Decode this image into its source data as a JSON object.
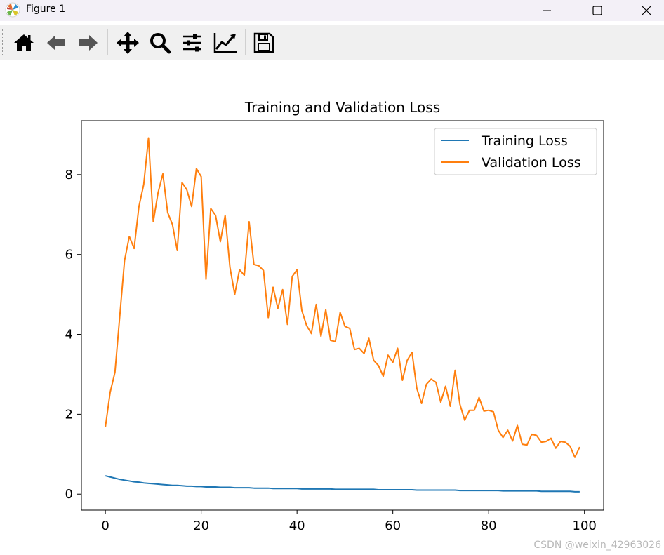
{
  "window": {
    "title": "Figure 1",
    "minimize_glyph": "—",
    "maximize_glyph": "☐",
    "close_glyph": "✕"
  },
  "toolbar": {
    "buttons": [
      "home-icon",
      "back-arrow-icon",
      "forward-arrow-icon",
      "pan-icon",
      "zoom-icon",
      "configure-subplots-icon",
      "edit-axis-icon",
      "save-icon"
    ]
  },
  "watermark": "CSDN @weixin_42963026",
  "colors": {
    "training": "#1f77b4",
    "validation": "#ff7f0e"
  },
  "chart_data": {
    "type": "line",
    "title": "Training and Validation Loss",
    "xlabel": "",
    "ylabel": "",
    "xlim": [
      -5,
      104
    ],
    "ylim": [
      -0.4,
      9.35
    ],
    "xticks": [
      0,
      20,
      40,
      60,
      80,
      100
    ],
    "yticks": [
      0,
      2,
      4,
      6,
      8
    ],
    "grid": false,
    "legend": "top-right",
    "x": [
      0,
      1,
      2,
      3,
      4,
      5,
      6,
      7,
      8,
      9,
      10,
      11,
      12,
      13,
      14,
      15,
      16,
      17,
      18,
      19,
      20,
      21,
      22,
      23,
      24,
      25,
      26,
      27,
      28,
      29,
      30,
      31,
      32,
      33,
      34,
      35,
      36,
      37,
      38,
      39,
      40,
      41,
      42,
      43,
      44,
      45,
      46,
      47,
      48,
      49,
      50,
      51,
      52,
      53,
      54,
      55,
      56,
      57,
      58,
      59,
      60,
      61,
      62,
      63,
      64,
      65,
      66,
      67,
      68,
      69,
      70,
      71,
      72,
      73,
      74,
      75,
      76,
      77,
      78,
      79,
      80,
      81,
      82,
      83,
      84,
      85,
      86,
      87,
      88,
      89,
      90,
      91,
      92,
      93,
      94,
      95,
      96,
      97,
      98,
      99
    ],
    "series": [
      {
        "name": "Training Loss",
        "values": [
          0.46,
          0.43,
          0.4,
          0.37,
          0.35,
          0.33,
          0.31,
          0.3,
          0.28,
          0.27,
          0.26,
          0.25,
          0.24,
          0.23,
          0.22,
          0.22,
          0.21,
          0.2,
          0.2,
          0.19,
          0.19,
          0.18,
          0.18,
          0.18,
          0.17,
          0.17,
          0.17,
          0.16,
          0.16,
          0.16,
          0.16,
          0.15,
          0.15,
          0.15,
          0.15,
          0.14,
          0.14,
          0.14,
          0.14,
          0.14,
          0.14,
          0.13,
          0.13,
          0.13,
          0.13,
          0.13,
          0.13,
          0.13,
          0.12,
          0.12,
          0.12,
          0.12,
          0.12,
          0.12,
          0.12,
          0.12,
          0.12,
          0.11,
          0.11,
          0.11,
          0.11,
          0.11,
          0.11,
          0.11,
          0.11,
          0.1,
          0.1,
          0.1,
          0.1,
          0.1,
          0.1,
          0.1,
          0.1,
          0.1,
          0.09,
          0.09,
          0.09,
          0.09,
          0.09,
          0.09,
          0.09,
          0.09,
          0.09,
          0.08,
          0.08,
          0.08,
          0.08,
          0.08,
          0.08,
          0.08,
          0.08,
          0.07,
          0.07,
          0.07,
          0.07,
          0.07,
          0.07,
          0.07,
          0.06,
          0.06
        ]
      },
      {
        "name": "Validation Loss",
        "values": [
          1.68,
          2.55,
          3.05,
          4.45,
          5.85,
          6.45,
          6.15,
          7.2,
          7.75,
          8.92,
          6.82,
          7.55,
          8.02,
          7.05,
          6.75,
          6.1,
          7.8,
          7.62,
          7.2,
          8.15,
          7.95,
          5.38,
          7.15,
          6.98,
          6.32,
          6.98,
          5.68,
          5.0,
          5.62,
          5.48,
          6.82,
          5.75,
          5.72,
          5.6,
          4.42,
          5.18,
          4.65,
          5.12,
          4.25,
          5.45,
          5.62,
          4.6,
          4.22,
          4.02,
          4.75,
          3.95,
          4.62,
          3.85,
          3.82,
          4.55,
          4.2,
          4.15,
          3.62,
          3.65,
          3.52,
          3.9,
          3.35,
          3.22,
          2.95,
          3.48,
          3.3,
          3.65,
          2.85,
          3.35,
          3.55,
          2.65,
          2.27,
          2.75,
          2.88,
          2.8,
          2.3,
          2.7,
          2.2,
          3.1,
          2.25,
          1.85,
          2.1,
          2.1,
          2.42,
          2.08,
          2.1,
          2.06,
          1.6,
          1.42,
          1.6,
          1.33,
          1.72,
          1.25,
          1.23,
          1.5,
          1.47,
          1.3,
          1.32,
          1.4,
          1.15,
          1.32,
          1.3,
          1.2,
          0.92,
          1.18
        ]
      }
    ]
  }
}
